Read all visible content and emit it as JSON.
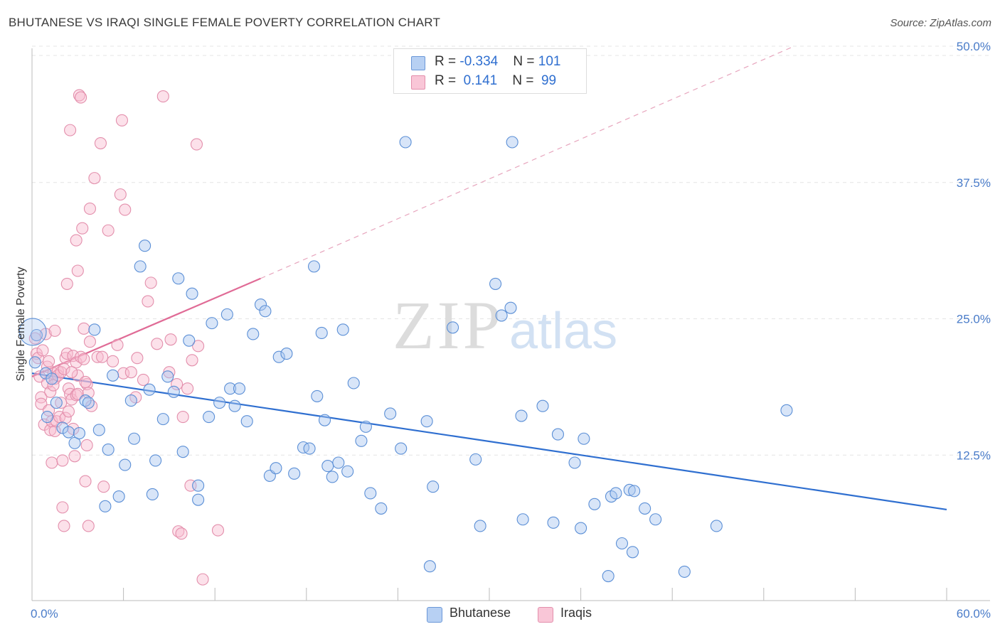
{
  "title": "BHUTANESE VS IRAQI SINGLE FEMALE POVERTY CORRELATION CHART",
  "source": "Source: ZipAtlas.com",
  "watermark": {
    "bold": "ZIP",
    "light": "atlas"
  },
  "legend": {
    "rows": [
      {
        "r_label": "R = ",
        "r_value": "-0.334",
        "n_label": "N = ",
        "n_value": "101",
        "color": "#a8c6f0",
        "border": "#5b8fd6"
      },
      {
        "r_label": "R = ",
        "r_value": " 0.141",
        "n_label": "N = ",
        "n_value": " 99",
        "color": "#f8bcd0",
        "border": "#e37ba0"
      }
    ]
  },
  "bottom_legend": [
    {
      "label": "Bhutanese",
      "color": "#b7d0f3",
      "border": "#6b98d8"
    },
    {
      "label": "Iraqis",
      "color": "#f9c6d7",
      "border": "#e38fac"
    }
  ],
  "chart_data": {
    "type": "scatter",
    "ylabel": "Single Female Poverty",
    "xlim": [
      0,
      60
    ],
    "ylim": [
      0,
      50
    ],
    "x_tick_labels": [
      "0.0%",
      "60.0%"
    ],
    "y_ticks": [
      12.5,
      25.0,
      37.5,
      50.0
    ],
    "y_tick_labels": [
      "12.5%",
      "25.0%",
      "37.5%",
      "50.0%"
    ],
    "colors": {
      "bhutanese": "#3a78d2",
      "iraqis": "#e06b96"
    },
    "series": [
      {
        "name": "Bhutanese",
        "color": "#3a78d2",
        "trend": {
          "x": [
            0,
            60
          ],
          "y": [
            20.0,
            7.5
          ]
        },
        "points": [
          [
            0.3,
            23.5
          ],
          [
            0.9,
            20.0
          ],
          [
            1.3,
            19.5
          ],
          [
            1.6,
            17.3
          ],
          [
            2.0,
            15.0
          ],
          [
            2.4,
            14.6
          ],
          [
            2.8,
            13.6
          ],
          [
            3.1,
            14.5
          ],
          [
            3.5,
            17.5
          ],
          [
            3.7,
            17.3
          ],
          [
            4.1,
            24.0
          ],
          [
            4.4,
            14.8
          ],
          [
            4.8,
            7.8
          ],
          [
            5.0,
            13.0
          ],
          [
            5.3,
            19.8
          ],
          [
            5.7,
            8.7
          ],
          [
            6.1,
            11.6
          ],
          [
            6.5,
            17.5
          ],
          [
            6.7,
            14.0
          ],
          [
            7.1,
            29.8
          ],
          [
            7.4,
            31.7
          ],
          [
            7.7,
            18.5
          ],
          [
            7.9,
            8.9
          ],
          [
            8.1,
            12.0
          ],
          [
            8.6,
            15.8
          ],
          [
            8.9,
            19.7
          ],
          [
            9.3,
            18.3
          ],
          [
            9.6,
            28.7
          ],
          [
            9.9,
            12.8
          ],
          [
            10.3,
            23.0
          ],
          [
            10.5,
            27.3
          ],
          [
            10.9,
            9.7
          ],
          [
            10.9,
            8.4
          ],
          [
            11.6,
            16.0
          ],
          [
            11.8,
            24.6
          ],
          [
            12.3,
            17.3
          ],
          [
            12.8,
            25.4
          ],
          [
            13.0,
            18.6
          ],
          [
            13.3,
            17.0
          ],
          [
            13.6,
            18.6
          ],
          [
            14.1,
            15.6
          ],
          [
            14.5,
            23.6
          ],
          [
            15.0,
            26.3
          ],
          [
            15.3,
            25.7
          ],
          [
            15.6,
            10.6
          ],
          [
            16.0,
            11.3
          ],
          [
            16.2,
            21.5
          ],
          [
            16.7,
            21.8
          ],
          [
            17.2,
            10.8
          ],
          [
            17.8,
            13.2
          ],
          [
            18.2,
            13.1
          ],
          [
            18.5,
            29.8
          ],
          [
            18.7,
            17.9
          ],
          [
            19.0,
            23.7
          ],
          [
            19.2,
            15.7
          ],
          [
            19.4,
            11.5
          ],
          [
            19.7,
            10.5
          ],
          [
            20.1,
            11.8
          ],
          [
            20.4,
            24.0
          ],
          [
            20.7,
            11.0
          ],
          [
            21.1,
            19.1
          ],
          [
            21.6,
            13.8
          ],
          [
            21.9,
            15.1
          ],
          [
            22.2,
            9.0
          ],
          [
            22.9,
            7.6
          ],
          [
            23.5,
            16.3
          ],
          [
            24.2,
            13.1
          ],
          [
            24.5,
            41.2
          ],
          [
            25.9,
            15.6
          ],
          [
            26.1,
            2.3
          ],
          [
            26.3,
            9.6
          ],
          [
            27.6,
            24.2
          ],
          [
            29.1,
            12.1
          ],
          [
            29.4,
            6.0
          ],
          [
            30.4,
            28.2
          ],
          [
            30.8,
            25.3
          ],
          [
            31.4,
            26.0
          ],
          [
            31.5,
            41.2
          ],
          [
            32.1,
            16.1
          ],
          [
            32.2,
            6.6
          ],
          [
            33.5,
            17.0
          ],
          [
            34.2,
            6.3
          ],
          [
            34.5,
            14.4
          ],
          [
            35.6,
            11.8
          ],
          [
            36.0,
            5.8
          ],
          [
            36.2,
            14.0
          ],
          [
            36.9,
            8.0
          ],
          [
            37.8,
            1.4
          ],
          [
            38.0,
            8.7
          ],
          [
            38.3,
            9.0
          ],
          [
            38.7,
            4.4
          ],
          [
            39.2,
            9.3
          ],
          [
            39.4,
            3.6
          ],
          [
            39.5,
            9.2
          ],
          [
            40.2,
            7.6
          ],
          [
            40.9,
            6.6
          ],
          [
            42.8,
            1.8
          ],
          [
            44.9,
            6.0
          ],
          [
            49.5,
            16.6
          ],
          [
            0.2,
            21.0
          ],
          [
            1.0,
            16.0
          ]
        ]
      },
      {
        "name": "Iraqis",
        "color": "#e06b96",
        "trend": {
          "x": [
            0,
            15
          ],
          "y": [
            19.7,
            28.7
          ]
        },
        "trend_dashed": {
          "x": [
            15,
            50
          ],
          "y": [
            28.7,
            50.0
          ]
        },
        "points": [
          [
            0.2,
            23.2
          ],
          [
            0.3,
            21.8
          ],
          [
            0.4,
            21.4
          ],
          [
            0.5,
            19.7
          ],
          [
            0.6,
            17.8
          ],
          [
            0.6,
            17.2
          ],
          [
            0.8,
            15.3
          ],
          [
            0.9,
            23.6
          ],
          [
            1.0,
            20.6
          ],
          [
            1.0,
            19.1
          ],
          [
            1.1,
            16.6
          ],
          [
            1.2,
            18.3
          ],
          [
            1.2,
            14.8
          ],
          [
            1.3,
            11.8
          ],
          [
            1.3,
            15.6
          ],
          [
            1.4,
            20.0
          ],
          [
            1.5,
            23.9
          ],
          [
            1.5,
            19.5
          ],
          [
            1.5,
            14.7
          ],
          [
            1.6,
            15.6
          ],
          [
            1.7,
            20.2
          ],
          [
            1.7,
            19.8
          ],
          [
            1.8,
            16.0
          ],
          [
            1.9,
            20.1
          ],
          [
            1.9,
            17.3
          ],
          [
            2.0,
            12.0
          ],
          [
            2.0,
            7.7
          ],
          [
            2.1,
            20.4
          ],
          [
            2.2,
            21.4
          ],
          [
            2.2,
            15.9
          ],
          [
            2.3,
            28.2
          ],
          [
            2.3,
            21.8
          ],
          [
            2.4,
            18.6
          ],
          [
            2.4,
            16.5
          ],
          [
            2.5,
            42.3
          ],
          [
            2.5,
            18.1
          ],
          [
            2.6,
            17.6
          ],
          [
            2.7,
            21.6
          ],
          [
            2.7,
            14.9
          ],
          [
            2.8,
            12.4
          ],
          [
            2.9,
            32.2
          ],
          [
            2.9,
            21.0
          ],
          [
            2.9,
            18.0
          ],
          [
            3.0,
            29.4
          ],
          [
            3.0,
            19.8
          ],
          [
            3.0,
            18.1
          ],
          [
            3.1,
            45.5
          ],
          [
            3.2,
            45.3
          ],
          [
            3.2,
            21.5
          ],
          [
            3.3,
            33.3
          ],
          [
            3.4,
            24.1
          ],
          [
            3.4,
            21.3
          ],
          [
            3.5,
            10.1
          ],
          [
            3.6,
            13.4
          ],
          [
            3.6,
            19.0
          ],
          [
            3.7,
            18.2
          ],
          [
            3.7,
            6.0
          ],
          [
            3.8,
            35.1
          ],
          [
            3.8,
            22.9
          ],
          [
            3.9,
            17.0
          ],
          [
            4.1,
            37.9
          ],
          [
            4.3,
            21.5
          ],
          [
            4.5,
            41.1
          ],
          [
            4.6,
            21.5
          ],
          [
            4.7,
            9.6
          ],
          [
            5.0,
            33.1
          ],
          [
            5.3,
            21.1
          ],
          [
            5.6,
            22.6
          ],
          [
            5.8,
            36.4
          ],
          [
            5.9,
            43.2
          ],
          [
            6.0,
            20.0
          ],
          [
            6.1,
            35.0
          ],
          [
            6.5,
            20.1
          ],
          [
            6.8,
            17.8
          ],
          [
            6.9,
            21.4
          ],
          [
            7.3,
            19.4
          ],
          [
            7.6,
            26.6
          ],
          [
            7.8,
            28.3
          ],
          [
            8.2,
            22.7
          ],
          [
            8.6,
            45.4
          ],
          [
            9.0,
            20.1
          ],
          [
            9.1,
            23.1
          ],
          [
            9.5,
            19.0
          ],
          [
            9.6,
            5.5
          ],
          [
            9.8,
            5.3
          ],
          [
            9.9,
            16.0
          ],
          [
            10.2,
            18.6
          ],
          [
            10.4,
            9.7
          ],
          [
            10.5,
            21.2
          ],
          [
            10.8,
            41.0
          ],
          [
            10.9,
            22.5
          ],
          [
            11.2,
            1.1
          ],
          [
            12.2,
            5.6
          ],
          [
            0.7,
            22.1
          ],
          [
            1.1,
            21.1
          ],
          [
            1.4,
            18.9
          ],
          [
            2.6,
            20.1
          ],
          [
            3.5,
            19.2
          ],
          [
            2.1,
            6.0
          ]
        ]
      }
    ]
  }
}
